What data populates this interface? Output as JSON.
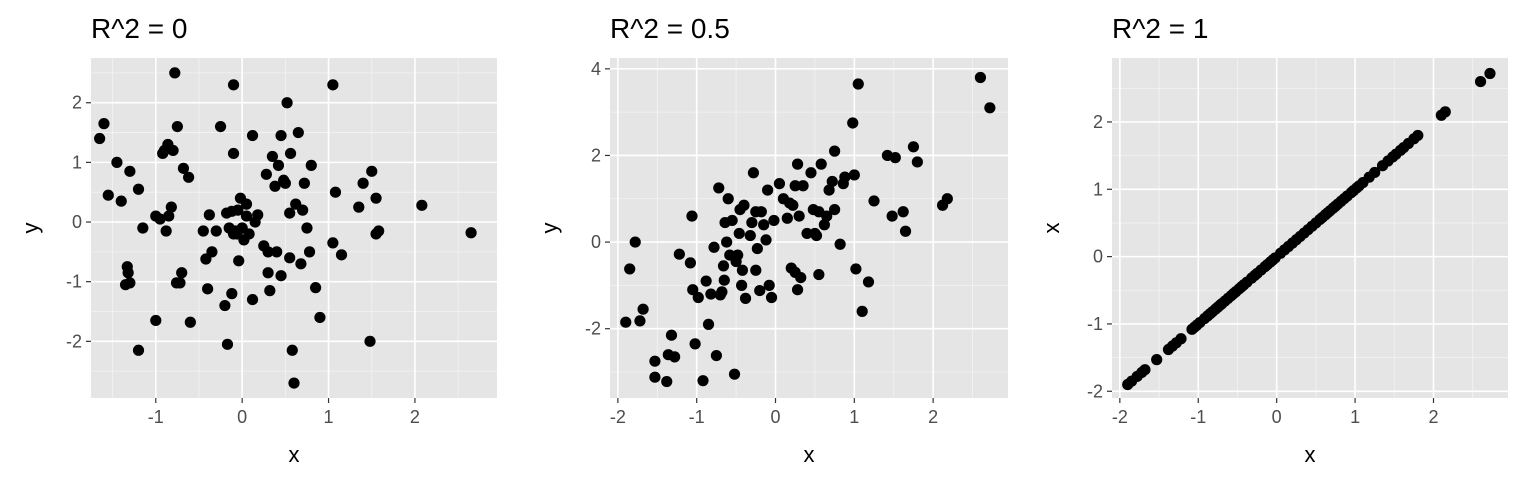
{
  "chart_data": [
    {
      "type": "scatter",
      "title": "R^2 = 0",
      "xlabel": "x",
      "ylabel": "y",
      "xlim": [
        -1.75,
        2.95
      ],
      "ylim": [
        -2.95,
        2.75
      ],
      "xticks": [
        -1,
        0,
        1,
        2
      ],
      "yticks": [
        -2,
        -1,
        0,
        1,
        2
      ],
      "grid": true,
      "points": [
        [
          -1.65,
          1.4
        ],
        [
          -1.6,
          1.65
        ],
        [
          -1.55,
          0.45
        ],
        [
          -1.45,
          1.0
        ],
        [
          -1.4,
          0.35
        ],
        [
          -1.35,
          -1.05
        ],
        [
          -1.33,
          -0.75
        ],
        [
          -1.32,
          -0.85
        ],
        [
          -1.3,
          -1.02
        ],
        [
          -1.3,
          0.85
        ],
        [
          -1.2,
          0.55
        ],
        [
          -1.2,
          -2.15
        ],
        [
          -1.15,
          -0.1
        ],
        [
          -1.0,
          -1.65
        ],
        [
          -1.0,
          0.1
        ],
        [
          -0.95,
          0.05
        ],
        [
          -0.92,
          1.15
        ],
        [
          -0.9,
          1.2
        ],
        [
          -0.88,
          -0.15
        ],
        [
          -0.86,
          1.3
        ],
        [
          -0.85,
          0.1
        ],
        [
          -0.82,
          0.25
        ],
        [
          -0.8,
          1.2
        ],
        [
          -0.78,
          2.5
        ],
        [
          -0.76,
          -1.02
        ],
        [
          -0.75,
          1.6
        ],
        [
          -0.72,
          -1.02
        ],
        [
          -0.7,
          -0.85
        ],
        [
          -0.68,
          0.9
        ],
        [
          -0.62,
          0.75
        ],
        [
          -0.6,
          -1.68
        ],
        [
          -0.45,
          -0.15
        ],
        [
          -0.42,
          -0.62
        ],
        [
          -0.4,
          -1.12
        ],
        [
          -0.38,
          0.12
        ],
        [
          -0.35,
          -0.5
        ],
        [
          -0.3,
          -0.15
        ],
        [
          -0.25,
          1.6
        ],
        [
          -0.2,
          -1.4
        ],
        [
          -0.18,
          0.15
        ],
        [
          -0.17,
          -2.05
        ],
        [
          -0.15,
          -0.1
        ],
        [
          -0.12,
          0.18
        ],
        [
          -0.12,
          -1.2
        ],
        [
          -0.1,
          1.15
        ],
        [
          -0.1,
          -0.2
        ],
        [
          -0.1,
          2.3
        ],
        [
          -0.08,
          -0.15
        ],
        [
          -0.06,
          -0.2
        ],
        [
          -0.05,
          0.2
        ],
        [
          -0.04,
          -0.65
        ],
        [
          -0.02,
          0.4
        ],
        [
          0.0,
          -0.1
        ],
        [
          0.02,
          -0.3
        ],
        [
          0.05,
          0.1
        ],
        [
          0.05,
          0.3
        ],
        [
          0.08,
          -0.2
        ],
        [
          0.12,
          -1.3
        ],
        [
          0.12,
          1.45
        ],
        [
          0.15,
          0.0
        ],
        [
          0.18,
          0.12
        ],
        [
          0.25,
          -0.4
        ],
        [
          0.28,
          0.8
        ],
        [
          0.3,
          -0.85
        ],
        [
          0.3,
          -0.5
        ],
        [
          0.32,
          -1.15
        ],
        [
          0.35,
          1.1
        ],
        [
          0.38,
          0.6
        ],
        [
          0.4,
          -0.5
        ],
        [
          0.42,
          0.95
        ],
        [
          0.45,
          -0.9
        ],
        [
          0.45,
          1.45
        ],
        [
          0.48,
          0.7
        ],
        [
          0.5,
          0.65
        ],
        [
          0.52,
          2.0
        ],
        [
          0.55,
          0.15
        ],
        [
          0.55,
          -0.6
        ],
        [
          0.56,
          1.15
        ],
        [
          0.58,
          -2.15
        ],
        [
          0.6,
          -2.7
        ],
        [
          0.62,
          0.3
        ],
        [
          0.65,
          1.5
        ],
        [
          0.68,
          -0.7
        ],
        [
          0.7,
          0.2
        ],
        [
          0.72,
          0.65
        ],
        [
          0.75,
          -0.1
        ],
        [
          0.78,
          -0.5
        ],
        [
          0.8,
          0.95
        ],
        [
          0.85,
          -1.1
        ],
        [
          0.9,
          -1.6
        ],
        [
          1.05,
          -0.35
        ],
        [
          1.05,
          2.3
        ],
        [
          1.08,
          0.5
        ],
        [
          1.15,
          -0.55
        ],
        [
          1.35,
          0.25
        ],
        [
          1.4,
          0.65
        ],
        [
          1.48,
          -2.0
        ],
        [
          1.5,
          0.85
        ],
        [
          1.55,
          0.4
        ],
        [
          1.55,
          -0.2
        ],
        [
          1.58,
          -0.15
        ],
        [
          2.08,
          0.28
        ],
        [
          2.65,
          -0.18
        ]
      ]
    },
    {
      "type": "scatter",
      "title": "R^2 = 0.5",
      "xlabel": "x",
      "ylabel": "y",
      "xlim": [
        -2.1,
        2.95
      ],
      "ylim": [
        -3.6,
        4.25
      ],
      "xticks": [
        -2,
        -1,
        0,
        1,
        2
      ],
      "yticks": [
        -2,
        0,
        2,
        4
      ],
      "grid": true,
      "points": [
        [
          -1.9,
          -1.85
        ],
        [
          -1.85,
          -0.62
        ],
        [
          -1.78,
          0.0
        ],
        [
          -1.72,
          -1.82
        ],
        [
          -1.68,
          -1.55
        ],
        [
          -1.53,
          -3.12
        ],
        [
          -1.53,
          -2.75
        ],
        [
          -1.38,
          -3.22
        ],
        [
          -1.36,
          -2.6
        ],
        [
          -1.32,
          -2.15
        ],
        [
          -1.28,
          -2.65
        ],
        [
          -1.22,
          -0.28
        ],
        [
          -1.08,
          -0.48
        ],
        [
          -1.06,
          0.6
        ],
        [
          -1.05,
          -1.1
        ],
        [
          -1.02,
          -2.35
        ],
        [
          -0.98,
          -1.28
        ],
        [
          -0.92,
          -3.2
        ],
        [
          -0.88,
          -0.9
        ],
        [
          -0.85,
          -1.9
        ],
        [
          -0.82,
          -1.2
        ],
        [
          -0.78,
          -0.12
        ],
        [
          -0.75,
          -2.62
        ],
        [
          -0.72,
          1.25
        ],
        [
          -0.7,
          -1.22
        ],
        [
          -0.68,
          -1.15
        ],
        [
          -0.66,
          -0.55
        ],
        [
          -0.65,
          -0.88
        ],
        [
          -0.64,
          0.45
        ],
        [
          -0.62,
          0.0
        ],
        [
          -0.6,
          1.0
        ],
        [
          -0.58,
          -0.3
        ],
        [
          -0.55,
          0.5
        ],
        [
          -0.52,
          -3.05
        ],
        [
          -0.5,
          -0.45
        ],
        [
          -0.48,
          -0.3
        ],
        [
          -0.46,
          0.2
        ],
        [
          -0.45,
          0.75
        ],
        [
          -0.43,
          -1.0
        ],
        [
          -0.42,
          -0.65
        ],
        [
          -0.4,
          0.85
        ],
        [
          -0.38,
          -1.3
        ],
        [
          -0.32,
          0.15
        ],
        [
          -0.3,
          0.45
        ],
        [
          -0.28,
          1.6
        ],
        [
          -0.25,
          0.7
        ],
        [
          -0.25,
          -0.65
        ],
        [
          -0.23,
          -0.15
        ],
        [
          -0.2,
          -1.12
        ],
        [
          -0.18,
          0.7
        ],
        [
          -0.15,
          0.4
        ],
        [
          -0.12,
          0.05
        ],
        [
          -0.1,
          1.2
        ],
        [
          -0.08,
          -1.0
        ],
        [
          -0.05,
          -1.28
        ],
        [
          -0.02,
          0.5
        ],
        [
          0.05,
          1.35
        ],
        [
          0.1,
          1.0
        ],
        [
          0.15,
          0.55
        ],
        [
          0.18,
          0.9
        ],
        [
          0.2,
          -0.6
        ],
        [
          0.22,
          0.85
        ],
        [
          0.25,
          1.3
        ],
        [
          0.25,
          -0.7
        ],
        [
          0.28,
          -1.1
        ],
        [
          0.28,
          1.8
        ],
        [
          0.3,
          0.6
        ],
        [
          0.32,
          -0.82
        ],
        [
          0.35,
          1.3
        ],
        [
          0.4,
          0.2
        ],
        [
          0.45,
          1.6
        ],
        [
          0.48,
          0.75
        ],
        [
          0.5,
          0.2
        ],
        [
          0.52,
          0.15
        ],
        [
          0.55,
          -0.75
        ],
        [
          0.55,
          0.7
        ],
        [
          0.58,
          1.8
        ],
        [
          0.62,
          0.4
        ],
        [
          0.65,
          0.6
        ],
        [
          0.68,
          1.2
        ],
        [
          0.72,
          1.4
        ],
        [
          0.75,
          0.75
        ],
        [
          0.75,
          2.1
        ],
        [
          0.82,
          -0.05
        ],
        [
          0.86,
          1.35
        ],
        [
          0.88,
          1.5
        ],
        [
          0.98,
          2.75
        ],
        [
          1.0,
          1.55
        ],
        [
          1.02,
          -0.62
        ],
        [
          1.05,
          3.65
        ],
        [
          1.1,
          -1.6
        ],
        [
          1.18,
          -0.92
        ],
        [
          1.25,
          0.95
        ],
        [
          1.42,
          2.0
        ],
        [
          1.48,
          0.6
        ],
        [
          1.52,
          1.95
        ],
        [
          1.62,
          0.7
        ],
        [
          1.65,
          0.25
        ],
        [
          1.75,
          2.2
        ],
        [
          1.8,
          1.85
        ],
        [
          2.12,
          0.85
        ],
        [
          2.18,
          1.0
        ],
        [
          2.6,
          3.8
        ],
        [
          2.72,
          3.1
        ]
      ]
    },
    {
      "type": "scatter",
      "title": "R^2 = 1",
      "xlabel": "x",
      "ylabel": "x",
      "xlim": [
        -2.1,
        2.95
      ],
      "ylim": [
        -2.1,
        2.95
      ],
      "xticks": [
        -2,
        -1,
        0,
        1,
        2
      ],
      "yticks": [
        -2,
        -1,
        0,
        1,
        2
      ],
      "grid": true,
      "points": [
        [
          -1.9,
          -1.9
        ],
        [
          -1.85,
          -1.85
        ],
        [
          -1.78,
          -1.78
        ],
        [
          -1.72,
          -1.72
        ],
        [
          -1.68,
          -1.68
        ],
        [
          -1.53,
          -1.53
        ],
        [
          -1.38,
          -1.38
        ],
        [
          -1.33,
          -1.33
        ],
        [
          -1.28,
          -1.28
        ],
        [
          -1.22,
          -1.22
        ],
        [
          -1.08,
          -1.08
        ],
        [
          -1.05,
          -1.05
        ],
        [
          -1.02,
          -1.02
        ],
        [
          -0.98,
          -0.98
        ],
        [
          -0.92,
          -0.92
        ],
        [
          -0.88,
          -0.88
        ],
        [
          -0.85,
          -0.85
        ],
        [
          -0.82,
          -0.82
        ],
        [
          -0.78,
          -0.78
        ],
        [
          -0.75,
          -0.75
        ],
        [
          -0.72,
          -0.72
        ],
        [
          -0.7,
          -0.7
        ],
        [
          -0.66,
          -0.66
        ],
        [
          -0.62,
          -0.62
        ],
        [
          -0.58,
          -0.58
        ],
        [
          -0.55,
          -0.55
        ],
        [
          -0.52,
          -0.52
        ],
        [
          -0.48,
          -0.48
        ],
        [
          -0.45,
          -0.45
        ],
        [
          -0.42,
          -0.42
        ],
        [
          -0.38,
          -0.38
        ],
        [
          -0.32,
          -0.32
        ],
        [
          -0.28,
          -0.28
        ],
        [
          -0.25,
          -0.25
        ],
        [
          -0.2,
          -0.2
        ],
        [
          -0.15,
          -0.15
        ],
        [
          -0.12,
          -0.12
        ],
        [
          -0.08,
          -0.08
        ],
        [
          -0.05,
          -0.05
        ],
        [
          -0.02,
          -0.02
        ],
        [
          0.05,
          0.05
        ],
        [
          0.1,
          0.1
        ],
        [
          0.15,
          0.15
        ],
        [
          0.2,
          0.2
        ],
        [
          0.25,
          0.25
        ],
        [
          0.3,
          0.3
        ],
        [
          0.35,
          0.35
        ],
        [
          0.4,
          0.4
        ],
        [
          0.45,
          0.45
        ],
        [
          0.5,
          0.5
        ],
        [
          0.55,
          0.55
        ],
        [
          0.58,
          0.58
        ],
        [
          0.62,
          0.62
        ],
        [
          0.65,
          0.65
        ],
        [
          0.68,
          0.68
        ],
        [
          0.72,
          0.72
        ],
        [
          0.75,
          0.75
        ],
        [
          0.78,
          0.78
        ],
        [
          0.82,
          0.82
        ],
        [
          0.86,
          0.86
        ],
        [
          0.9,
          0.9
        ],
        [
          0.95,
          0.95
        ],
        [
          0.98,
          0.98
        ],
        [
          1.02,
          1.02
        ],
        [
          1.05,
          1.05
        ],
        [
          1.1,
          1.1
        ],
        [
          1.18,
          1.18
        ],
        [
          1.25,
          1.25
        ],
        [
          1.35,
          1.35
        ],
        [
          1.42,
          1.42
        ],
        [
          1.48,
          1.48
        ],
        [
          1.52,
          1.52
        ],
        [
          1.58,
          1.58
        ],
        [
          1.62,
          1.62
        ],
        [
          1.68,
          1.68
        ],
        [
          1.75,
          1.75
        ],
        [
          1.8,
          1.8
        ],
        [
          2.1,
          2.1
        ],
        [
          2.15,
          2.15
        ],
        [
          2.6,
          2.6
        ],
        [
          2.72,
          2.72
        ]
      ]
    }
  ]
}
